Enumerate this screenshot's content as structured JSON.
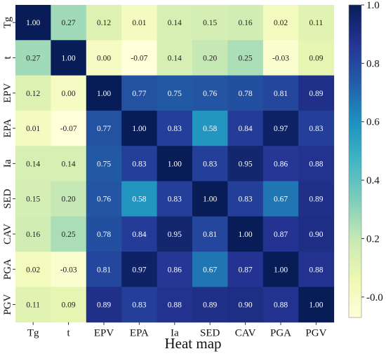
{
  "chart_data": {
    "type": "heatmap",
    "title": "",
    "xlabel": "Heat map",
    "ylabel": "",
    "x_labels": [
      "Tg",
      "t",
      "EPV",
      "EPA",
      "Ia",
      "SED",
      "CAV",
      "PGA",
      "PGV"
    ],
    "y_labels": [
      "Tg",
      "t",
      "EPV",
      "EPA",
      "Ia",
      "SED",
      "CAV",
      "PGA",
      "PGV"
    ],
    "values": [
      [
        1.0,
        0.27,
        0.12,
        0.01,
        0.14,
        0.15,
        0.16,
        0.02,
        0.11
      ],
      [
        0.27,
        1.0,
        0.0,
        -0.07,
        0.14,
        0.2,
        0.25,
        -0.03,
        0.09
      ],
      [
        0.12,
        0.0,
        1.0,
        0.77,
        0.75,
        0.76,
        0.78,
        0.81,
        0.89
      ],
      [
        0.01,
        -0.07,
        0.77,
        1.0,
        0.83,
        0.58,
        0.84,
        0.97,
        0.83
      ],
      [
        0.14,
        0.14,
        0.75,
        0.83,
        1.0,
        0.83,
        0.95,
        0.86,
        0.88
      ],
      [
        0.15,
        0.2,
        0.76,
        0.58,
        0.83,
        1.0,
        0.83,
        0.67,
        0.89
      ],
      [
        0.16,
        0.25,
        0.78,
        0.84,
        0.95,
        0.81,
        1.0,
        0.87,
        0.9
      ],
      [
        0.02,
        -0.03,
        0.81,
        0.97,
        0.86,
        0.67,
        0.87,
        1.0,
        0.88
      ],
      [
        0.11,
        0.09,
        0.89,
        0.83,
        0.88,
        0.89,
        0.9,
        0.88,
        1.0
      ]
    ],
    "value_labels": [
      [
        "1.00",
        "0.27",
        "0.12",
        "0.01",
        "0.14",
        "0.15",
        "0.16",
        "0.02",
        "0.11"
      ],
      [
        "0.27",
        "1.00",
        "0.00",
        "-0.07",
        "0.14",
        "0.20",
        "0.25",
        "-0.03",
        "0.09"
      ],
      [
        "0.12",
        "0.00",
        "1.00",
        "0.77",
        "0.75",
        "0.76",
        "0.78",
        "0.81",
        "0.89"
      ],
      [
        "0.01",
        "-0.07",
        "0.77",
        "1.00",
        "0.83",
        "0.58",
        "0.84",
        "0.97",
        "0.83"
      ],
      [
        "0.14",
        "0.14",
        "0.75",
        "0.83",
        "1.00",
        "0.83",
        "0.95",
        "0.86",
        "0.88"
      ],
      [
        "0.15",
        "0.20",
        "0.76",
        "0.58",
        "0.83",
        "1.00",
        "0.83",
        "0.67",
        "0.89"
      ],
      [
        "0.16",
        "0.25",
        "0.78",
        "0.84",
        "0.95",
        "0.81",
        "1.00",
        "0.87",
        "0.90"
      ],
      [
        "0.02",
        "-0.03",
        "0.81",
        "0.97",
        "0.86",
        "0.67",
        "0.87",
        "1.00",
        "0.88"
      ],
      [
        "0.11",
        "0.09",
        "0.89",
        "0.83",
        "0.88",
        "0.89",
        "0.90",
        "0.88",
        "1.00"
      ]
    ],
    "colorbar": {
      "range": [
        -0.07,
        1.0
      ],
      "ticks": [
        0.0,
        0.2,
        0.4,
        0.6,
        0.8,
        1.0
      ],
      "tick_labels": [
        "-0.0",
        "0.2",
        "0.4",
        "0.6",
        "0.8",
        "1.0"
      ]
    },
    "colormap": "YlGnBu",
    "colormap_stops": [
      "#ffffd9",
      "#edf8b1",
      "#c7e9b4",
      "#7fcdbb",
      "#41b6c4",
      "#1d91c0",
      "#225ea8",
      "#253494",
      "#081d58"
    ],
    "light_text_color": "#ffffff",
    "dark_text_color": "#222222"
  }
}
